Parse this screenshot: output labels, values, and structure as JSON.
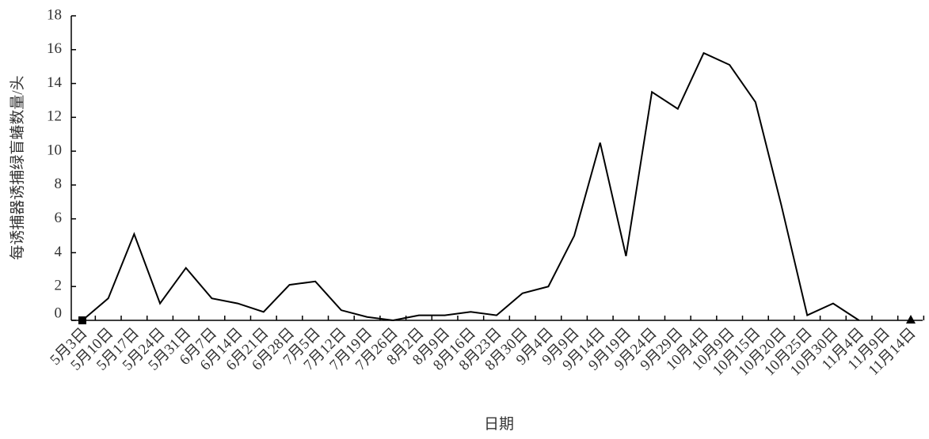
{
  "chart_data": {
    "type": "line",
    "x_label": "日期",
    "y_label": "每诱捕器诱捕绿盲蝽数量/头",
    "categories": [
      "5月3日",
      "5月10日",
      "5月17日",
      "5月24日",
      "5月31日",
      "6月7日",
      "6月14日",
      "6月21日",
      "6月28日",
      "7月5日",
      "7月12日",
      "7月19日",
      "7月26日",
      "8月2日",
      "8月9日",
      "8月16日",
      "8月23日",
      "8月30日",
      "9月4日",
      "9月9日",
      "9月14日",
      "9月19日",
      "9月24日",
      "9月29日",
      "10月4日",
      "10月9日",
      "10月15日",
      "10月20日",
      "10月25日",
      "10月30日",
      "11月4日",
      "11月9日",
      "11月14日"
    ],
    "values": [
      0,
      1.3,
      5.1,
      1.0,
      3.1,
      1.3,
      1.0,
      0.5,
      2.1,
      2.3,
      0.6,
      0.2,
      0,
      0.3,
      0.3,
      0.5,
      0.3,
      1.6,
      2.0,
      5.0,
      10.5,
      3.8,
      13.5,
      12.5,
      15.8,
      15.1,
      12.9,
      6.8,
      0.3,
      1.0,
      0,
      null,
      0
    ],
    "color": "#000000",
    "ylim": [
      0,
      18
    ],
    "yticks": [
      0,
      2,
      4,
      6,
      8,
      10,
      12,
      14,
      16,
      18
    ]
  }
}
